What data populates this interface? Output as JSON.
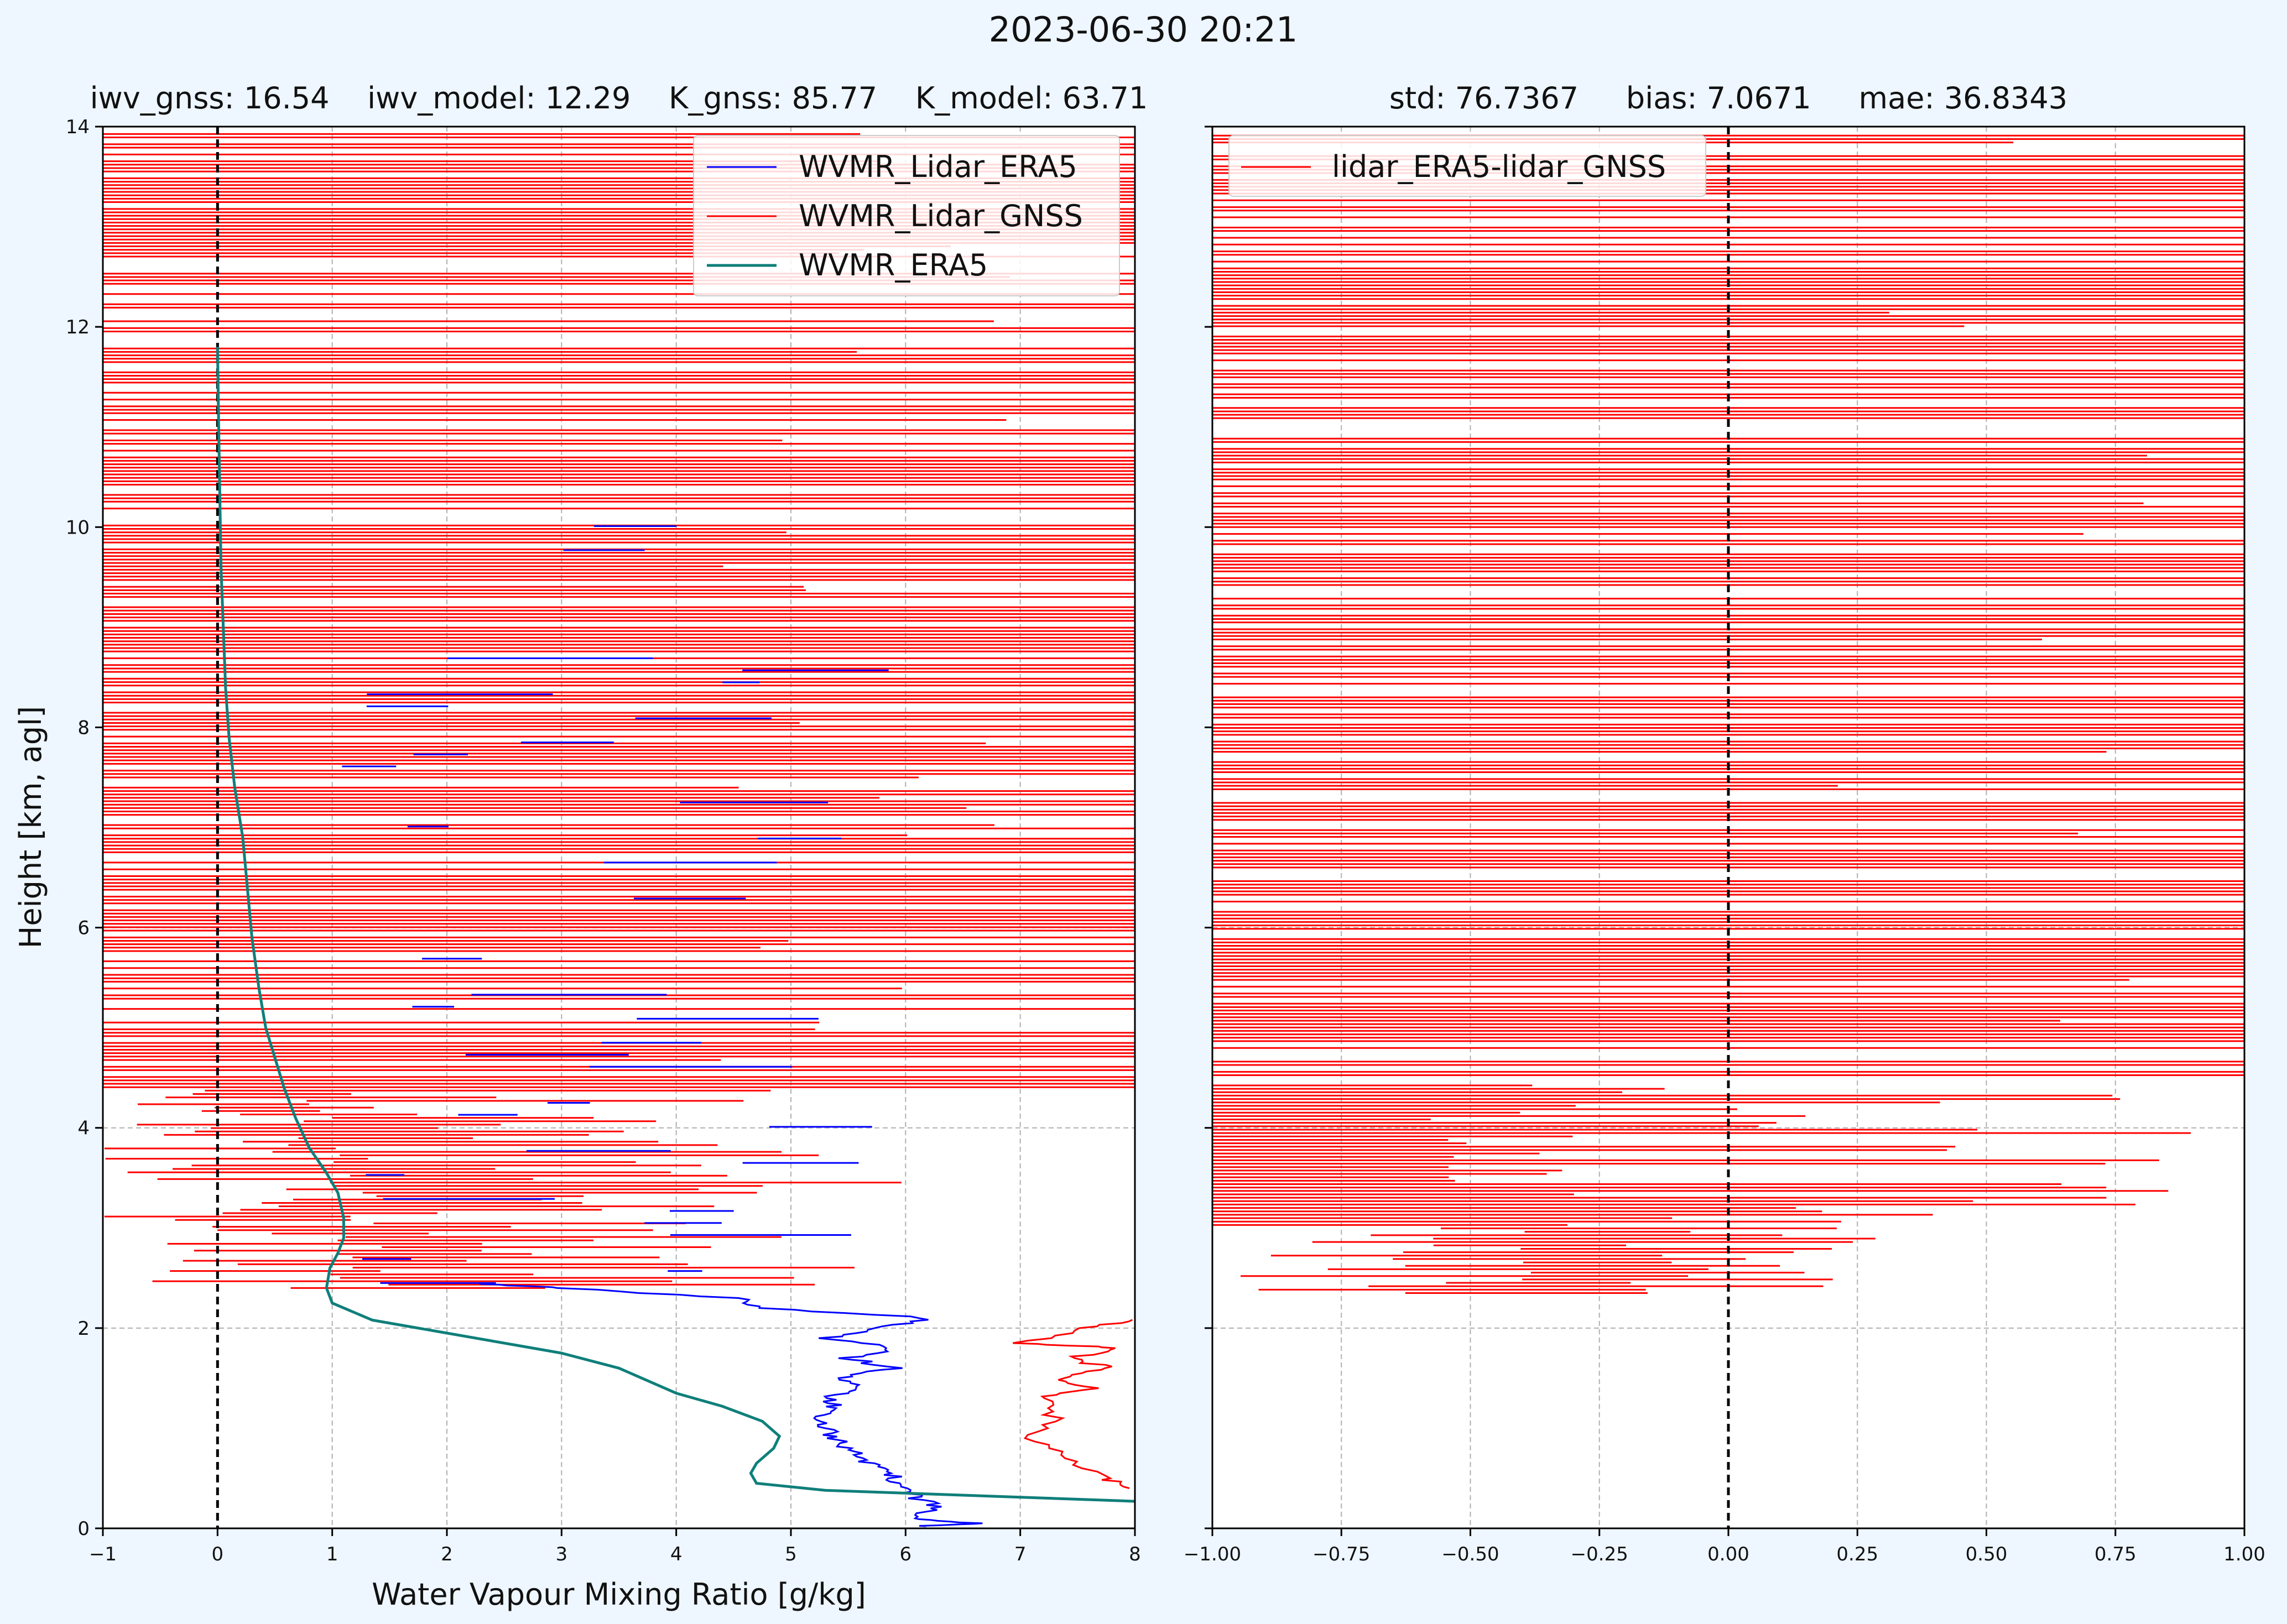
{
  "figure": {
    "suptitle": "2023-06-30 20:21",
    "background": "#eef6ff"
  },
  "chart_data": [
    {
      "type": "line",
      "title": "iwv_gnss: 16.54    iwv_model: 12.29    K_gnss: 85.77    K_model: 63.71",
      "xlabel": "Water Vapour Mixing Ratio [g/kg]",
      "ylabel": "Height [km, agl]",
      "xlim": [
        -1,
        8
      ],
      "ylim": [
        0,
        14
      ],
      "xticks": [
        "−1",
        "0",
        "1",
        "2",
        "3",
        "4",
        "5",
        "6",
        "7",
        "8"
      ],
      "yticks": [
        "0",
        "2",
        "4",
        "6",
        "8",
        "10",
        "12",
        "14"
      ],
      "grid": "dashed, at x = 1,2,...,7 and y = 2,4,6",
      "legend_location": "upper right",
      "reference_line": {
        "x": 0,
        "style": "black dashed"
      },
      "series": [
        {
          "name": "WVMR_Lidar_ERA5",
          "color": "#0000ff",
          "description_points": [
            [
              6.1,
              0.02
            ],
            [
              6.6,
              0.05
            ],
            [
              6.0,
              0.1
            ],
            [
              6.3,
              0.2
            ],
            [
              6.1,
              0.3
            ],
            [
              6.0,
              0.4
            ],
            [
              5.9,
              0.5
            ],
            [
              5.8,
              0.6
            ],
            [
              5.6,
              0.7
            ],
            [
              5.5,
              0.8
            ],
            [
              5.4,
              0.9
            ],
            [
              5.3,
              1.0
            ],
            [
              5.2,
              1.1
            ],
            [
              5.4,
              1.2
            ],
            [
              5.3,
              1.3
            ],
            [
              5.6,
              1.4
            ],
            [
              5.4,
              1.5
            ],
            [
              5.9,
              1.6
            ],
            [
              5.5,
              1.7
            ],
            [
              5.9,
              1.8
            ],
            [
              5.3,
              1.9
            ],
            [
              5.8,
              2.0
            ],
            [
              6.2,
              2.1
            ],
            [
              4.8,
              2.2
            ],
            [
              4.5,
              2.3
            ],
            [
              3.0,
              2.4
            ],
            [
              2.2,
              2.45
            ]
          ],
          "upper_levels_note": "horizontal segments between about 1 and 6 g/kg at heights 2.5–10 km"
        },
        {
          "name": "WVMR_Lidar_GNSS",
          "color": "#ff0000",
          "description_points": [
            [
              8.0,
              0.4
            ],
            [
              7.7,
              0.5
            ],
            [
              7.4,
              0.7
            ],
            [
              7.1,
              0.9
            ],
            [
              7.3,
              1.1
            ],
            [
              7.2,
              1.3
            ],
            [
              7.6,
              1.4
            ],
            [
              7.3,
              1.5
            ],
            [
              7.8,
              1.6
            ],
            [
              7.4,
              1.7
            ],
            [
              7.9,
              1.8
            ],
            [
              7.0,
              1.85
            ],
            [
              7.6,
              2.0
            ],
            [
              8.0,
              2.1
            ]
          ],
          "upper_levels_note": "dense horizontal red segments spanning −1 to 8 g/kg at heights 2.4–14 km"
        },
        {
          "name": "WVMR_ERA5",
          "color": "#0f7f7a",
          "points": [
            [
              8.0,
              0.27
            ],
            [
              5.3,
              0.38
            ],
            [
              4.7,
              0.45
            ],
            [
              4.65,
              0.55
            ],
            [
              4.7,
              0.65
            ],
            [
              4.85,
              0.8
            ],
            [
              4.9,
              0.92
            ],
            [
              4.75,
              1.07
            ],
            [
              4.4,
              1.22
            ],
            [
              4.0,
              1.35
            ],
            [
              3.7,
              1.5
            ],
            [
              3.5,
              1.6
            ],
            [
              3.0,
              1.75
            ],
            [
              2.0,
              1.95
            ],
            [
              1.35,
              2.08
            ],
            [
              1.0,
              2.25
            ],
            [
              0.95,
              2.4
            ],
            [
              0.98,
              2.6
            ],
            [
              1.05,
              2.75
            ],
            [
              1.1,
              2.9
            ],
            [
              1.1,
              3.1
            ],
            [
              1.05,
              3.35
            ],
            [
              0.95,
              3.55
            ],
            [
              0.8,
              3.8
            ],
            [
              0.68,
              4.1
            ],
            [
              0.58,
              4.4
            ],
            [
              0.5,
              4.7
            ],
            [
              0.42,
              5.0
            ],
            [
              0.36,
              5.4
            ],
            [
              0.3,
              5.9
            ],
            [
              0.26,
              6.4
            ],
            [
              0.22,
              6.9
            ],
            [
              0.15,
              7.4
            ],
            [
              0.1,
              7.9
            ],
            [
              0.07,
              8.4
            ],
            [
              0.05,
              9.0
            ],
            [
              0.03,
              9.6
            ],
            [
              0.02,
              10.3
            ],
            [
              0.01,
              11.0
            ],
            [
              0.0,
              11.8
            ]
          ]
        }
      ]
    },
    {
      "type": "line",
      "title": "std: 76.7367     bias: 7.0671     mae: 36.8343",
      "xlabel": "",
      "ylabel": "",
      "xlim": [
        -1.0,
        1.0
      ],
      "ylim": [
        0,
        14
      ],
      "xticks": [
        "−1.00",
        "−0.75",
        "−0.50",
        "−0.25",
        "0.00",
        "0.25",
        "0.50",
        "0.75",
        "1.00"
      ],
      "grid": "dashed, at x = −0.75…0.75 and y = 2,4,6",
      "legend_location": "upper left",
      "reference_line": {
        "x": 0,
        "style": "black dashed"
      },
      "series": [
        {
          "name": "lidar_ERA5-lidar_GNSS",
          "color": "#ff0000",
          "upper_levels_note": "dense horizontal red segments spanning −1 to 1 at heights 2.4–14 km"
        }
      ]
    }
  ]
}
